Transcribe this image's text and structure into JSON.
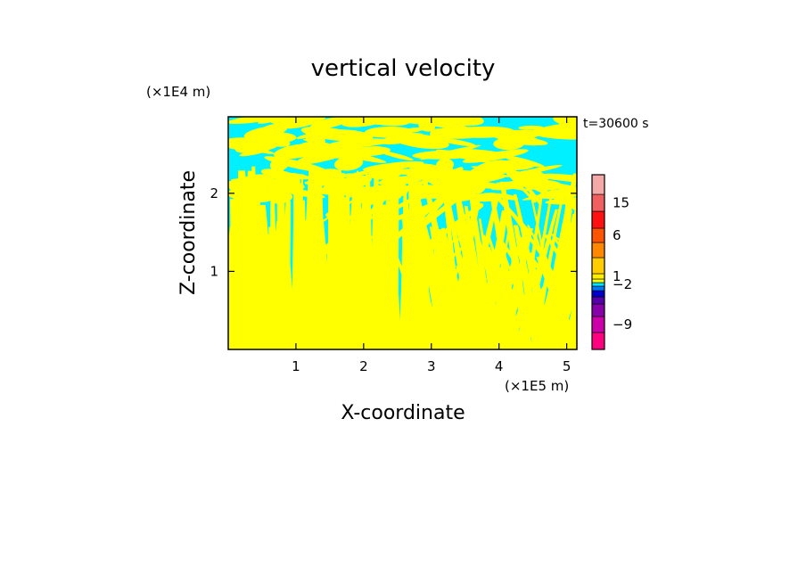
{
  "chart_data": {
    "type": "heatmap",
    "title": "vertical velocity",
    "time_label": "t=30600 s",
    "xlabel": "X-coordinate",
    "ylabel": "Z-coordinate",
    "x_unit": "(×1E5 m)",
    "y_unit": "(×1E4 m)",
    "xlim": [
      0.0,
      5.15
    ],
    "ylim": [
      0.0,
      2.98
    ],
    "x_ticks": [
      {
        "value": 1,
        "label": "1"
      },
      {
        "value": 2,
        "label": "2"
      },
      {
        "value": 3,
        "label": "3"
      },
      {
        "value": 4,
        "label": "4"
      },
      {
        "value": 5,
        "label": "5"
      }
    ],
    "y_ticks": [
      {
        "value": 1,
        "label": "1"
      },
      {
        "value": 2,
        "label": "2"
      }
    ],
    "colorbar": {
      "levels": [
        {
          "color": "#ff0080"
        },
        {
          "color": "#cc00aa"
        },
        {
          "color": "#8800aa"
        },
        {
          "color": "#5500aa"
        },
        {
          "color": "#0000cc"
        },
        {
          "color": "#0077ff"
        },
        {
          "color": "#00e5ff"
        },
        {
          "color": "#ffff00"
        },
        {
          "color": "#ffee00"
        },
        {
          "color": "#ffcc00"
        },
        {
          "color": "#ff8800"
        },
        {
          "color": "#ff5500"
        },
        {
          "color": "#ff1111"
        },
        {
          "color": "#f06060"
        },
        {
          "color": "#f4a8a8"
        },
        {
          "color": "#fde9e5"
        }
      ],
      "labels": [
        {
          "text": "15",
          "level": 13
        },
        {
          "text": "6",
          "level": 11
        },
        {
          "text": "1",
          "level": 8
        },
        {
          "text": "−2",
          "level": 6
        },
        {
          "text": "−9",
          "level": 1
        }
      ]
    },
    "field_colors": {
      "positive": "#ffff00",
      "negative": "#00f0ff"
    }
  }
}
